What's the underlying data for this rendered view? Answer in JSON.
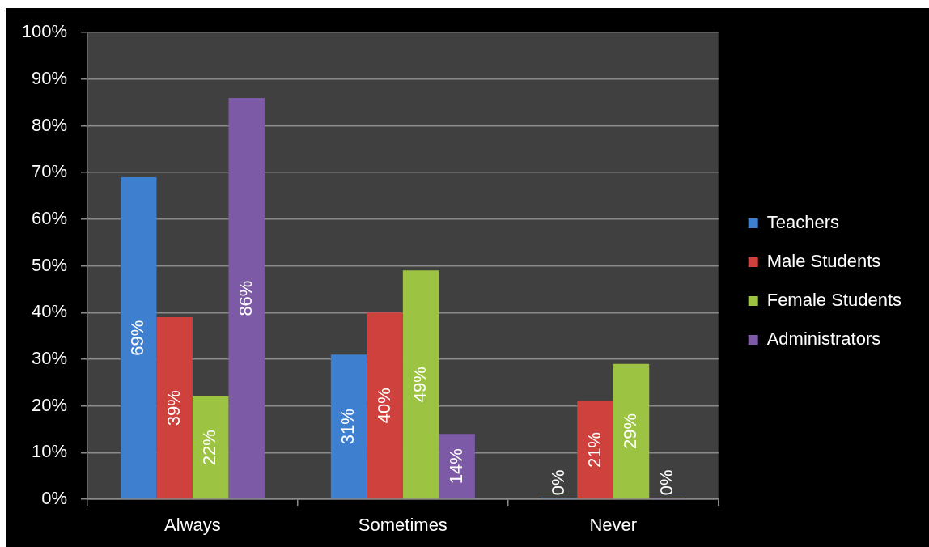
{
  "chart_data": {
    "type": "bar",
    "categories": [
      "Always",
      "Sometimes",
      "Never"
    ],
    "series": [
      {
        "name": "Teachers",
        "color": "#3f7fcf",
        "values": [
          69,
          31,
          0
        ],
        "value_labels": [
          "69%",
          "31%",
          "0%"
        ]
      },
      {
        "name": "Male Students",
        "color": "#cf413d",
        "values": [
          39,
          40,
          21
        ],
        "value_labels": [
          "39%",
          "40%",
          "21%"
        ]
      },
      {
        "name": "Female Students",
        "color": "#9cc442",
        "values": [
          22,
          49,
          29
        ],
        "value_labels": [
          "22%",
          "49%",
          "29%"
        ]
      },
      {
        "name": "Administrators",
        "color": "#7d5aa6",
        "values": [
          86,
          14,
          0
        ],
        "value_labels": [
          "86%",
          "14%",
          "0%"
        ]
      }
    ],
    "ylim": [
      0,
      100
    ],
    "yticks": [
      {
        "value": 0,
        "label": "0%"
      },
      {
        "value": 10,
        "label": "10%"
      },
      {
        "value": 20,
        "label": "20%"
      },
      {
        "value": 30,
        "label": "30%"
      },
      {
        "value": 40,
        "label": "40%"
      },
      {
        "value": 50,
        "label": "50%"
      },
      {
        "value": 60,
        "label": "60%"
      },
      {
        "value": 70,
        "label": "70%"
      },
      {
        "value": 80,
        "label": "80%"
      },
      {
        "value": 90,
        "label": "90%"
      },
      {
        "value": 100,
        "label": "100%"
      }
    ],
    "grid": "y",
    "legend": "right"
  }
}
